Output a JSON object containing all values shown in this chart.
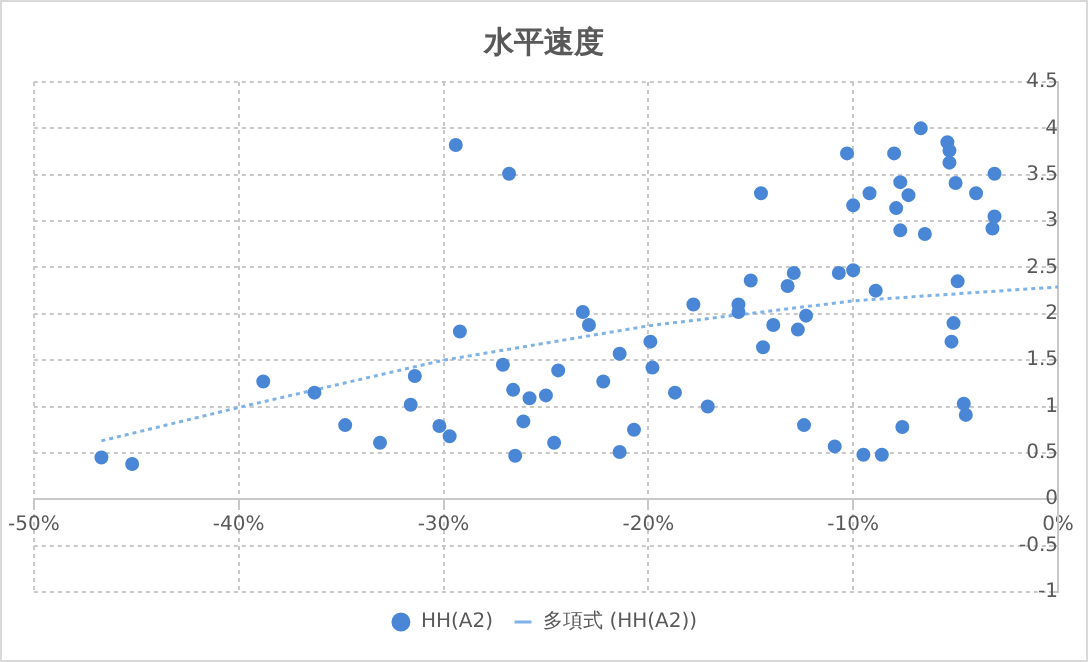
{
  "chart_data": {
    "type": "scatter",
    "title": "水平速度",
    "xlim": [
      -50,
      0
    ],
    "xticks": [
      {
        "value": -50,
        "label": "-50%"
      },
      {
        "value": -40,
        "label": "-40%"
      },
      {
        "value": -30,
        "label": "-30%"
      },
      {
        "value": -20,
        "label": "-20%"
      },
      {
        "value": -10,
        "label": "-10%"
      },
      {
        "value": 0,
        "label": "0%"
      }
    ],
    "ylim": [
      -1,
      4.5
    ],
    "yticks": [
      -1,
      -0.5,
      0,
      0.5,
      1,
      1.5,
      2,
      2.5,
      3,
      3.5,
      4,
      4.5
    ],
    "grid": true,
    "legend": "bottom",
    "series": [
      {
        "name": "HH(A2)",
        "color": "#4a86d6",
        "marker": "circle",
        "x": [
          -46.7,
          -45.2,
          -38.8,
          -36.3,
          -34.8,
          -33.1,
          -31.4,
          -31.6,
          -30.2,
          -29.7,
          -29.4,
          -29.2,
          -26.8,
          -27.1,
          -26.6,
          -25.8,
          -25.0,
          -26.1,
          -26.5,
          -24.6,
          -24.4,
          -23.2,
          -22.9,
          -22.2,
          -21.4,
          -21.4,
          -20.7,
          -19.9,
          -19.8,
          -18.7,
          -17.8,
          -17.1,
          -15.6,
          -15.6,
          -15.0,
          -14.5,
          -14.4,
          -13.9,
          -13.2,
          -12.9,
          -12.7,
          -12.3,
          -12.4,
          -10.9,
          -10.7,
          -10.3,
          -10.0,
          -10.0,
          -9.5,
          -9.2,
          -8.9,
          -8.6,
          -8.0,
          -7.9,
          -7.7,
          -7.7,
          -7.3,
          -7.6,
          -6.7,
          -6.5,
          -5.4,
          -5.3,
          -5.3,
          -5.0,
          -4.9,
          -5.1,
          -5.2,
          -4.6,
          -4.5,
          -4.0,
          -3.1,
          -3.1,
          -3.2
        ],
        "values": [
          0.45,
          0.38,
          1.27,
          1.15,
          0.8,
          0.61,
          1.33,
          1.02,
          0.79,
          0.68,
          3.82,
          1.81,
          3.51,
          1.45,
          1.18,
          1.09,
          1.12,
          0.84,
          0.47,
          0.61,
          1.39,
          2.02,
          1.88,
          1.27,
          1.57,
          0.51,
          0.75,
          1.7,
          1.42,
          1.15,
          2.1,
          1.0,
          2.1,
          2.02,
          2.36,
          3.3,
          1.64,
          1.88,
          2.3,
          2.44,
          1.83,
          1.98,
          0.8,
          0.57,
          2.44,
          3.73,
          2.47,
          3.17,
          0.48,
          3.3,
          2.25,
          0.48,
          3.73,
          3.14,
          2.9,
          3.42,
          3.28,
          0.78,
          4.0,
          2.86,
          3.85,
          3.76,
          3.63,
          3.41,
          2.35,
          1.9,
          1.7,
          1.03,
          0.91,
          3.3,
          3.51,
          3.05,
          2.92
        ]
      },
      {
        "name": "多項式 (HH(A2))",
        "type": "line",
        "color": "#7fb2e5",
        "marker": "none",
        "line_style": "dotted",
        "x": [
          -46.7,
          -40,
          -30,
          -20,
          -10,
          0
        ],
        "values": [
          0.63,
          0.99,
          1.5,
          1.87,
          2.14,
          2.29
        ]
      }
    ]
  }
}
